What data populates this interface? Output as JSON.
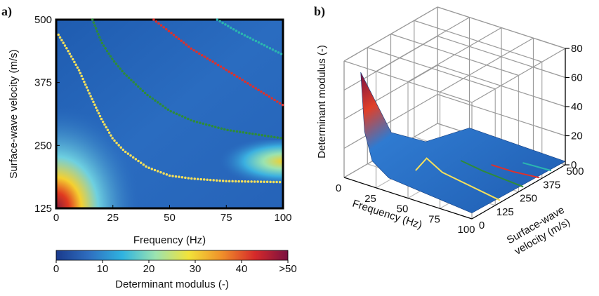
{
  "chart_data": [
    {
      "type": "heatmap",
      "panel_label": "a)",
      "xlabel": "Frequency (Hz)",
      "ylabel": "Surface-wave velocity (m/s)",
      "xlim": [
        0,
        100
      ],
      "xticks": [
        0,
        25,
        50,
        75,
        100
      ],
      "ylim": [
        125,
        500
      ],
      "yticks": [
        125,
        250,
        375,
        500
      ],
      "colorbar": {
        "label": "Determinant modulus (-)",
        "lim": [
          0,
          50
        ],
        "ticks": [
          0,
          10,
          20,
          30,
          40,
          {
            "value": 50,
            "label": ">50"
          }
        ],
        "colors": [
          "#1a3a8c",
          "#2f6fc0",
          "#2fb3e0",
          "#9be3b0",
          "#f2e33a",
          "#f0902a",
          "#d62a2a",
          "#7a1040"
        ]
      },
      "series": [
        {
          "color": "#f6e05a",
          "x": [
            1,
            5,
            10,
            15,
            20,
            25,
            30,
            40,
            50,
            60,
            75,
            100
          ],
          "values": [
            470,
            440,
            400,
            350,
            302,
            263,
            239,
            207,
            190,
            184,
            179,
            177
          ]
        },
        {
          "color": "#2e8b3a",
          "x": [
            16,
            20,
            25,
            30,
            40,
            50,
            60,
            75,
            100
          ],
          "values": [
            500,
            455,
            420,
            393,
            351,
            319,
            299,
            281,
            264
          ]
        },
        {
          "color": "#e0302a",
          "x": [
            43,
            50,
            60,
            75,
            90,
            100
          ],
          "values": [
            500,
            476,
            441,
            400,
            358,
            330
          ]
        },
        {
          "color": "#2bb5b0",
          "x": [
            71,
            80,
            90,
            100
          ],
          "values": [
            500,
            476,
            453,
            430
          ]
        }
      ]
    },
    {
      "type": "surface3d",
      "panel_label": "b)",
      "xlabel": "Frequency (Hz)",
      "ylabel": [
        "Surface-wave",
        "velocity (m/s)"
      ],
      "zlabel": "Determinant modulus (-)",
      "xlim": [
        0,
        100
      ],
      "xticks": [
        0,
        25,
        50,
        75,
        100
      ],
      "ylim": [
        0,
        500
      ],
      "yticks": [
        0,
        125,
        250,
        375,
        500
      ],
      "zlim": [
        0,
        80
      ],
      "zticks": [
        0,
        20,
        40,
        60,
        80
      ]
    }
  ]
}
